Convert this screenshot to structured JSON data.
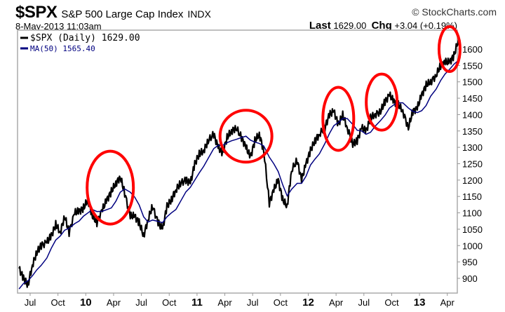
{
  "header": {
    "symbol": "$SPX",
    "name": "S&P 500 Large Cap Index",
    "exchange": "INDX",
    "copyright": "© StockCharts.com",
    "datetime": "8-May-2013 11:03am",
    "last_label": "Last",
    "last_value": "1629.00",
    "chg_label": "Chg",
    "chg_value": "+3.04 (+0.19%)"
  },
  "chart_data": {
    "type": "line",
    "title": "$SPX S&P 500 Large Cap Index",
    "xlabel": "",
    "ylabel": "",
    "ylim": [
      851,
      1645
    ],
    "xlim": [
      2009.39,
      2013.37
    ],
    "yticks": [
      900,
      950,
      1000,
      1050,
      1100,
      1150,
      1200,
      1250,
      1300,
      1350,
      1400,
      1450,
      1500,
      1550,
      1600
    ],
    "xticks": [
      {
        "t": 2009.5,
        "label": "Jul",
        "bold": false
      },
      {
        "t": 2009.75,
        "label": "Oct",
        "bold": false
      },
      {
        "t": 2010.0,
        "label": "10",
        "bold": true
      },
      {
        "t": 2010.25,
        "label": "Apr",
        "bold": false
      },
      {
        "t": 2010.5,
        "label": "Jul",
        "bold": false
      },
      {
        "t": 2010.75,
        "label": "Oct",
        "bold": false
      },
      {
        "t": 2011.0,
        "label": "11",
        "bold": true
      },
      {
        "t": 2011.25,
        "label": "Apr",
        "bold": false
      },
      {
        "t": 2011.5,
        "label": "Jul",
        "bold": false
      },
      {
        "t": 2011.75,
        "label": "Oct",
        "bold": false
      },
      {
        "t": 2012.0,
        "label": "12",
        "bold": true
      },
      {
        "t": 2012.25,
        "label": "Apr",
        "bold": false
      },
      {
        "t": 2012.5,
        "label": "Jul",
        "bold": false
      },
      {
        "t": 2012.75,
        "label": "Oct",
        "bold": false
      },
      {
        "t": 2013.0,
        "label": "13",
        "bold": true
      },
      {
        "t": 2013.25,
        "label": "Apr",
        "bold": false
      }
    ],
    "legend": [
      {
        "label": "$SPX (Daily) 1629.00",
        "color": "#000000"
      },
      {
        "label": "MA(50) 1565.40",
        "color": "#000080"
      }
    ],
    "legend_placement": "top-left",
    "annotation_color": "#ff0000",
    "series": [
      {
        "name": "$SPX (Daily)",
        "color": "#000000",
        "t": [
          2009.4,
          2009.44,
          2009.48,
          2009.52,
          2009.56,
          2009.6,
          2009.65,
          2009.69,
          2009.73,
          2009.77,
          2009.81,
          2009.85,
          2009.9,
          2009.94,
          2009.98,
          2010.02,
          2010.06,
          2010.1,
          2010.15,
          2010.19,
          2010.23,
          2010.27,
          2010.31,
          2010.35,
          2010.4,
          2010.44,
          2010.48,
          2010.52,
          2010.56,
          2010.6,
          2010.65,
          2010.69,
          2010.73,
          2010.77,
          2010.81,
          2010.85,
          2010.9,
          2010.94,
          2010.98,
          2011.02,
          2011.06,
          2011.1,
          2011.15,
          2011.19,
          2011.23,
          2011.27,
          2011.31,
          2011.35,
          2011.4,
          2011.44,
          2011.48,
          2011.52,
          2011.56,
          2011.6,
          2011.65,
          2011.69,
          2011.73,
          2011.77,
          2011.81,
          2011.85,
          2011.9,
          2011.94,
          2011.98,
          2012.02,
          2012.06,
          2012.1,
          2012.15,
          2012.19,
          2012.23,
          2012.27,
          2012.31,
          2012.35,
          2012.4,
          2012.44,
          2012.48,
          2012.52,
          2012.56,
          2012.6,
          2012.65,
          2012.69,
          2012.73,
          2012.77,
          2012.81,
          2012.85,
          2012.9,
          2012.94,
          2012.98,
          2013.02,
          2013.06,
          2013.1,
          2013.15,
          2013.19,
          2013.23,
          2013.27,
          2013.31,
          2013.35
        ],
        "values": [
          930,
          900,
          880,
          940,
          980,
          1000,
          1010,
          1030,
          1065,
          1040,
          1090,
          1040,
          1100,
          1105,
          1115,
          1140,
          1090,
          1070,
          1110,
          1140,
          1165,
          1190,
          1210,
          1160,
          1090,
          1090,
          1070,
          1030,
          1080,
          1120,
          1070,
          1050,
          1120,
          1140,
          1170,
          1190,
          1200,
          1190,
          1250,
          1280,
          1290,
          1320,
          1340,
          1300,
          1280,
          1330,
          1350,
          1360,
          1330,
          1300,
          1270,
          1320,
          1340,
          1290,
          1130,
          1170,
          1200,
          1140,
          1120,
          1230,
          1260,
          1200,
          1250,
          1290,
          1320,
          1340,
          1360,
          1400,
          1410,
          1370,
          1400,
          1360,
          1310,
          1320,
          1360,
          1350,
          1390,
          1400,
          1410,
          1440,
          1460,
          1440,
          1430,
          1410,
          1360,
          1410,
          1420,
          1460,
          1490,
          1500,
          1520,
          1550,
          1560,
          1560,
          1580,
          1629
        ]
      },
      {
        "name": "MA(50)",
        "color": "#000080",
        "window": 5
      }
    ]
  }
}
